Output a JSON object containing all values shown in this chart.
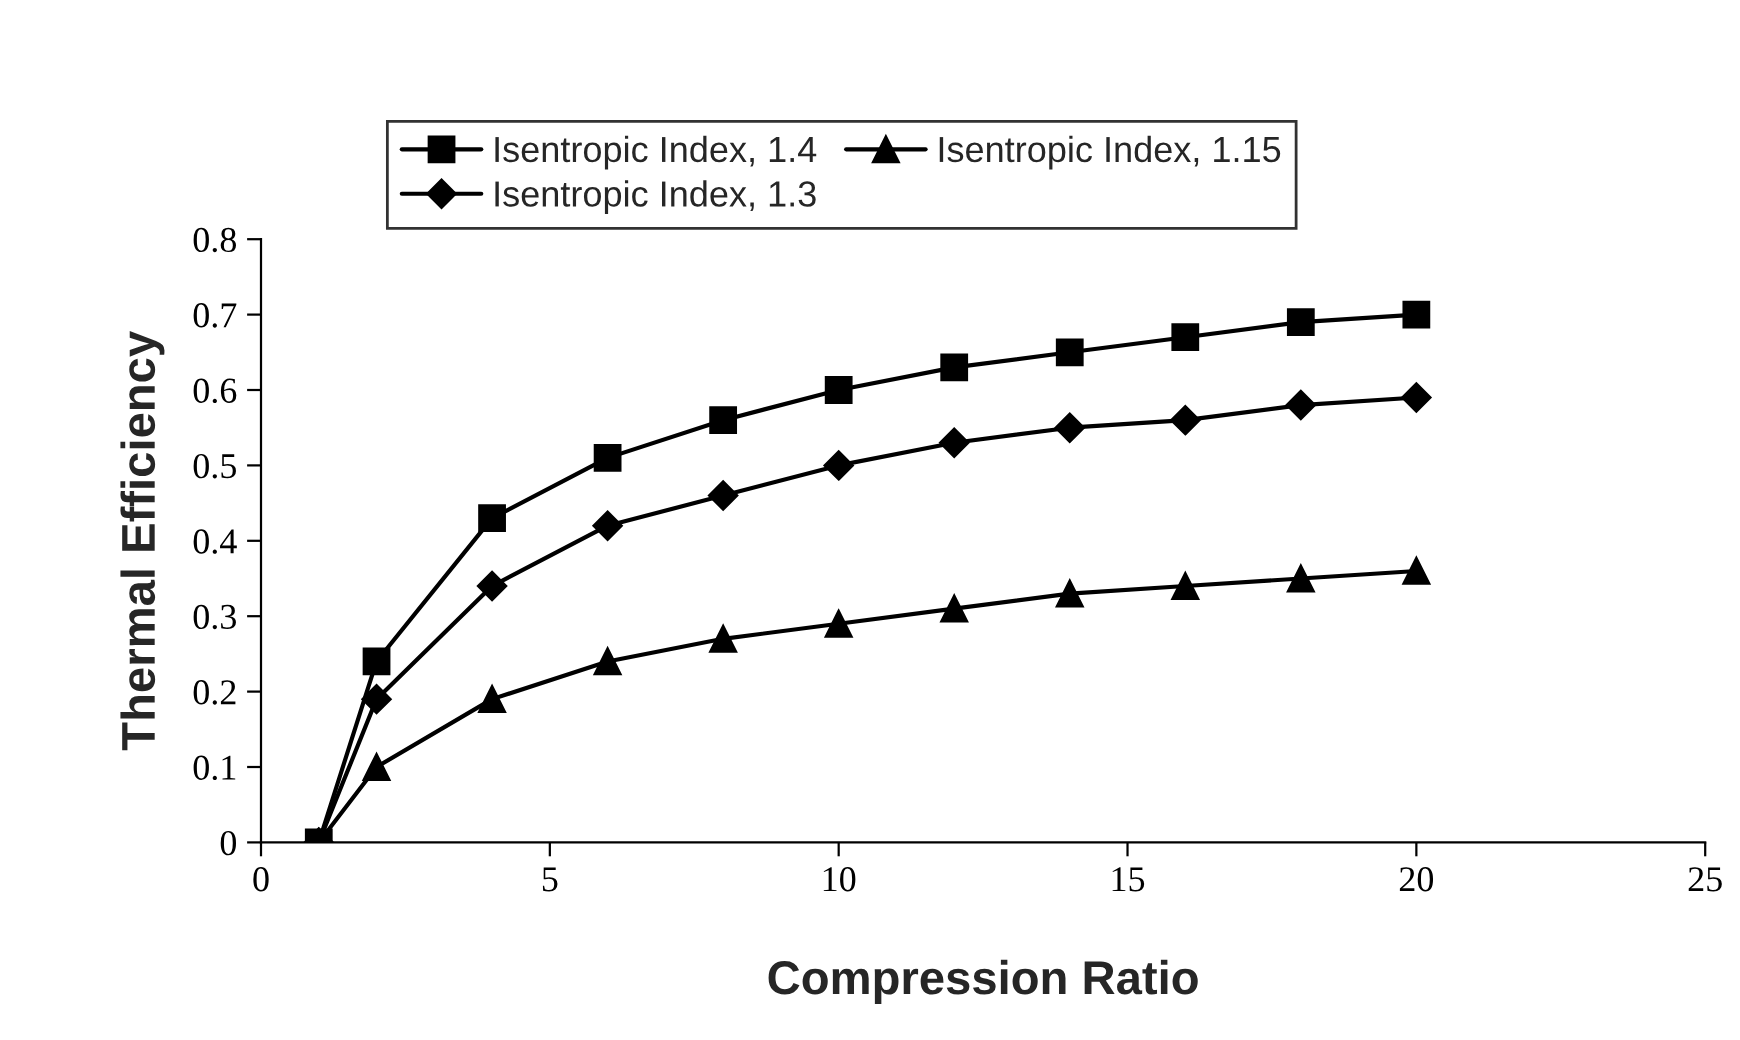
{
  "chart_data": {
    "type": "line",
    "xlabel": "Compression Ratio",
    "ylabel": "Thermal Efficiency",
    "x": [
      1,
      2,
      4,
      6,
      8,
      10,
      12,
      14,
      16,
      18,
      20
    ],
    "series": [
      {
        "name": "Isentropic Index, 1.4",
        "color": "#000000",
        "marker": "square",
        "values": [
          0,
          0.24,
          0.43,
          0.51,
          0.56,
          0.6,
          0.63,
          0.65,
          0.67,
          0.69,
          0.7
        ]
      },
      {
        "name": "Isentropic Index, 1.3",
        "color": "#000000",
        "marker": "diamond",
        "values": [
          0,
          0.19,
          0.34,
          0.42,
          0.46,
          0.5,
          0.53,
          0.55,
          0.56,
          0.58,
          0.59
        ]
      },
      {
        "name": "Isentropic Index, 1.15",
        "color": "#000000",
        "marker": "triangle",
        "values": [
          0,
          0.1,
          0.19,
          0.24,
          0.27,
          0.29,
          0.31,
          0.33,
          0.34,
          0.35,
          0.36
        ]
      }
    ],
    "xlim": [
      0,
      25
    ],
    "xticks": [
      0,
      5,
      10,
      15,
      20,
      25
    ],
    "ylim": [
      0,
      0.8
    ],
    "yticks": [
      0,
      0.1,
      0.2,
      0.3,
      0.4,
      0.5,
      0.6,
      0.7,
      0.8
    ],
    "line_style": "solid",
    "legend": "top"
  }
}
